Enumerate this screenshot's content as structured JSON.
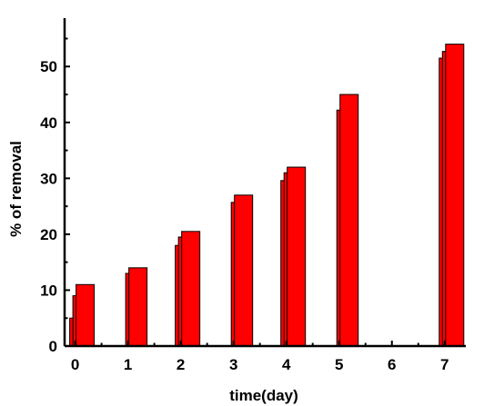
{
  "chart_data": {
    "type": "bar",
    "title": "",
    "xlabel": "time(day)",
    "ylabel": "% of removal",
    "xlim": [
      -0.2,
      7.4
    ],
    "ylim": [
      0,
      58
    ],
    "xticks": [
      0,
      1,
      2,
      3,
      4,
      5,
      6,
      7
    ],
    "yticks": [
      0,
      10,
      20,
      30,
      40,
      50
    ],
    "grid": false,
    "legend": "none",
    "bar_fill": "#ff0000",
    "bar_stroke": "#000000",
    "groups": [
      {
        "x": 0,
        "values": [
          5,
          9,
          11
        ]
      },
      {
        "x": 1,
        "values": [
          13,
          14
        ]
      },
      {
        "x": 2,
        "values": [
          18,
          19.5,
          20.5
        ]
      },
      {
        "x": 3,
        "values": [
          25.7,
          27
        ]
      },
      {
        "x": 4,
        "values": [
          29.6,
          31,
          32
        ]
      },
      {
        "x": 5,
        "values": [
          42.2,
          45
        ]
      },
      {
        "x": 6,
        "values": []
      },
      {
        "x": 7,
        "values": [
          51.5,
          52.7,
          54
        ]
      }
    ]
  }
}
